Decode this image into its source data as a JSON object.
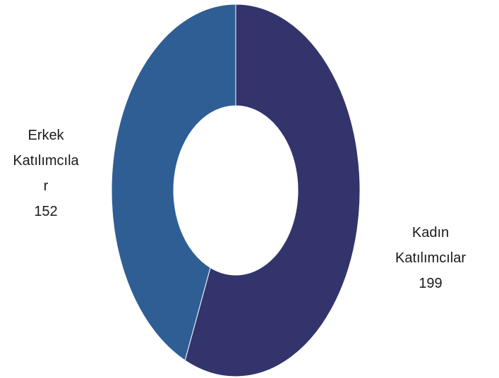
{
  "chart_data": {
    "type": "pie",
    "donut": true,
    "title": "",
    "slices": [
      {
        "label": "Kadın Katılımcılar",
        "label_lines": [
          "Kadın",
          "Katılımcılar"
        ],
        "value": 199,
        "color": "#32346b"
      },
      {
        "label": "Erkek Katılımcılar",
        "label_lines": [
          "Erkek",
          "Katılımcıla",
          "r"
        ],
        "value": 152,
        "color": "#2f5e95"
      }
    ],
    "start_angle": "top, clockwise",
    "legend": "none",
    "data_labels": "outside"
  }
}
